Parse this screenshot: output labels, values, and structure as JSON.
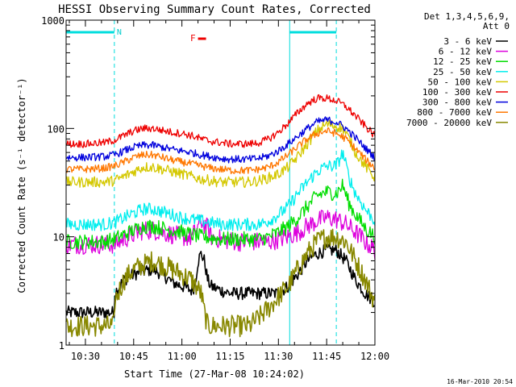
{
  "chart_data": {
    "type": "line",
    "title": "HESSI Observing Summary Count Rates, Corrected",
    "xlabel": "Start Time (27-Mar-08 10:24:02)",
    "ylabel": "Corrected Count Rate (s⁻¹ detector⁻¹)",
    "x_unit": "minutes after 10:24:02",
    "xlim": [
      0,
      96
    ],
    "ylim": [
      1,
      1000
    ],
    "yscale": "log",
    "x_ticks": [
      {
        "label": "10:30",
        "x": 6
      },
      {
        "label": "10:45",
        "x": 21
      },
      {
        "label": "11:00",
        "x": 36
      },
      {
        "label": "11:15",
        "x": 51
      },
      {
        "label": "11:30",
        "x": 66
      },
      {
        "label": "11:45",
        "x": 81
      },
      {
        "label": "12:00",
        "x": 96
      }
    ],
    "y_ticks": [
      {
        "label": "1",
        "y": 1
      },
      {
        "label": "10",
        "y": 10
      },
      {
        "label": "100",
        "y": 100
      },
      {
        "label": "1000",
        "y": 1000
      }
    ],
    "legend": {
      "placement": "right",
      "header": [
        "Det 1,3,4,5,6,9,",
        "Att 0"
      ]
    },
    "annotations": {
      "night_bars": [
        {
          "x_start": 0,
          "x_end": 15,
          "label": "N"
        },
        {
          "x_start": 69.5,
          "x_end": 84,
          "label": ""
        }
      ],
      "flare_flag": {
        "label": "F",
        "x_start": 41,
        "x_end": 43.5
      },
      "vertical_lines": [
        {
          "x": 0,
          "style": "solid"
        },
        {
          "x": 15,
          "style": "dashed"
        },
        {
          "x": 69.5,
          "style": "solid"
        },
        {
          "x": 84,
          "style": "dashed"
        }
      ]
    },
    "series": [
      {
        "name": "3 - 6 keV",
        "color": "#000000",
        "x": [
          0,
          3,
          6,
          9,
          12,
          14.9,
          15,
          18,
          21,
          24,
          27,
          30,
          33,
          36,
          39,
          40,
          41,
          42,
          43,
          44,
          45,
          48,
          51,
          54,
          57,
          60,
          63,
          66,
          69,
          72,
          75,
          78,
          81,
          84,
          87,
          90,
          93,
          96
        ],
        "y": [
          2,
          2,
          2,
          2,
          2,
          2,
          3,
          4,
          4.5,
          4.8,
          5,
          4.5,
          3.8,
          3.5,
          3.2,
          3.5,
          6,
          7,
          6,
          4,
          3.5,
          3.2,
          3,
          3,
          3,
          3,
          3,
          3,
          3.5,
          4.5,
          6,
          7,
          7.5,
          7.5,
          6,
          4,
          3,
          2.5
        ]
      },
      {
        "name": "6 - 12 keV",
        "color": "#dd00dd",
        "x": [
          0,
          6,
          12,
          15,
          18,
          21,
          24,
          27,
          30,
          33,
          36,
          39,
          42,
          44,
          45,
          48,
          51,
          54,
          57,
          60,
          63,
          66,
          69,
          72,
          75,
          78,
          81,
          84,
          87,
          90,
          93,
          96
        ],
        "y": [
          8.5,
          8.5,
          8.5,
          8.5,
          9.5,
          10.5,
          11.5,
          11.5,
          11,
          10.5,
          10,
          9.8,
          14,
          12,
          10,
          9.5,
          9.2,
          9,
          9,
          9,
          9,
          9.5,
          10,
          11,
          12.5,
          14,
          15,
          14.5,
          13,
          11,
          9,
          7.5
        ]
      },
      {
        "name": "12 - 25 keV",
        "color": "#00dd00",
        "x": [
          0,
          6,
          12,
          15,
          18,
          21,
          24,
          27,
          30,
          33,
          36,
          39,
          42,
          45,
          48,
          51,
          54,
          57,
          60,
          63,
          66,
          69,
          72,
          75,
          78,
          81,
          84,
          86,
          88,
          90,
          93,
          96
        ],
        "y": [
          9,
          9,
          9,
          9.5,
          10.5,
          11.5,
          12.5,
          12.5,
          12,
          11.5,
          11,
          10.5,
          10,
          9.8,
          9.5,
          9.5,
          9.5,
          9.5,
          9.5,
          10,
          11,
          12.5,
          15,
          19,
          24,
          26,
          25,
          30,
          20,
          16,
          12,
          10
        ]
      },
      {
        "name": "25 - 50 keV",
        "color": "#00eeee",
        "x": [
          0,
          6,
          12,
          15,
          18,
          21,
          24,
          27,
          30,
          33,
          36,
          39,
          42,
          45,
          48,
          51,
          54,
          57,
          60,
          63,
          66,
          69,
          72,
          75,
          78,
          81,
          84,
          86,
          88,
          90,
          93,
          96
        ],
        "y": [
          13,
          13,
          13,
          13.5,
          15,
          16.5,
          18,
          18,
          17,
          16,
          15,
          14.5,
          14,
          13.5,
          13,
          13,
          13,
          13,
          13,
          14,
          16,
          19,
          25,
          32,
          40,
          45,
          45,
          60,
          35,
          25,
          18,
          14
        ]
      },
      {
        "name": "50 - 100 keV",
        "color": "#d4c800",
        "x": [
          0,
          6,
          12,
          15,
          18,
          21,
          24,
          27,
          30,
          33,
          36,
          39,
          42,
          45,
          48,
          51,
          54,
          57,
          60,
          63,
          66,
          69,
          72,
          75,
          78,
          81,
          84,
          86,
          88,
          90,
          93,
          96
        ],
        "y": [
          32,
          32,
          32,
          33,
          36,
          40,
          44,
          44,
          42,
          40,
          38,
          36,
          34,
          33,
          32,
          32,
          32,
          32,
          33,
          35,
          38,
          44,
          55,
          72,
          95,
          110,
          105,
          100,
          80,
          60,
          45,
          35
        ]
      },
      {
        "name": "100 - 300 keV",
        "color": "#ee0000",
        "x": [
          0,
          6,
          12,
          15,
          18,
          21,
          24,
          27,
          30,
          33,
          36,
          39,
          42,
          45,
          48,
          51,
          54,
          57,
          60,
          63,
          66,
          69,
          72,
          75,
          78,
          81,
          84,
          87,
          90,
          93,
          96
        ],
        "y": [
          72,
          72,
          74,
          78,
          86,
          95,
          100,
          100,
          96,
          92,
          90,
          86,
          80,
          76,
          74,
          72,
          72,
          72,
          74,
          80,
          92,
          112,
          140,
          170,
          190,
          190,
          180,
          160,
          130,
          105,
          85
        ]
      },
      {
        "name": "300 - 800 keV",
        "color": "#0000dd",
        "x": [
          0,
          6,
          12,
          15,
          18,
          21,
          24,
          27,
          30,
          33,
          36,
          39,
          42,
          45,
          48,
          51,
          54,
          57,
          60,
          63,
          66,
          69,
          72,
          75,
          78,
          81,
          84,
          87,
          90,
          93,
          96
        ],
        "y": [
          54,
          54,
          55,
          57,
          62,
          67,
          70,
          70,
          67,
          64,
          62,
          60,
          57,
          55,
          53,
          52,
          52,
          52,
          53,
          56,
          62,
          72,
          85,
          100,
          115,
          120,
          115,
          100,
          82,
          66,
          54
        ]
      },
      {
        "name": "800 - 7000 keV",
        "color": "#ff7700",
        "x": [
          0,
          6,
          12,
          15,
          18,
          21,
          24,
          27,
          30,
          33,
          36,
          39,
          42,
          45,
          48,
          51,
          54,
          57,
          60,
          63,
          66,
          69,
          72,
          75,
          78,
          81,
          84,
          87,
          90,
          93,
          96
        ],
        "y": [
          42,
          42,
          43,
          45,
          49,
          54,
          57,
          57,
          54,
          51,
          49,
          47,
          45,
          43,
          42,
          41,
          41,
          41,
          42,
          44,
          49,
          57,
          68,
          80,
          90,
          95,
          90,
          80,
          65,
          52,
          43
        ]
      },
      {
        "name": "7000 - 20000 keV",
        "color": "#888800",
        "x": [
          0,
          6,
          12,
          14.9,
          15,
          18,
          21,
          24,
          27,
          30,
          33,
          36,
          39,
          42,
          43,
          44,
          45,
          48,
          51,
          54,
          57,
          60,
          63,
          66,
          69,
          72,
          75,
          78,
          81,
          84,
          87,
          90,
          93,
          96
        ],
        "y": [
          1.5,
          1.5,
          1.5,
          1.5,
          2.5,
          4,
          5,
          5.5,
          6,
          5.5,
          5,
          4.5,
          4,
          3,
          2,
          1.5,
          1.5,
          1.5,
          1.5,
          1.5,
          1.5,
          1.8,
          2.2,
          2.8,
          3.5,
          5,
          7,
          9,
          10,
          10,
          9,
          6,
          4,
          2.5
        ]
      }
    ]
  },
  "footer": {
    "timestamp": "16-Mar-2010 20:54"
  }
}
